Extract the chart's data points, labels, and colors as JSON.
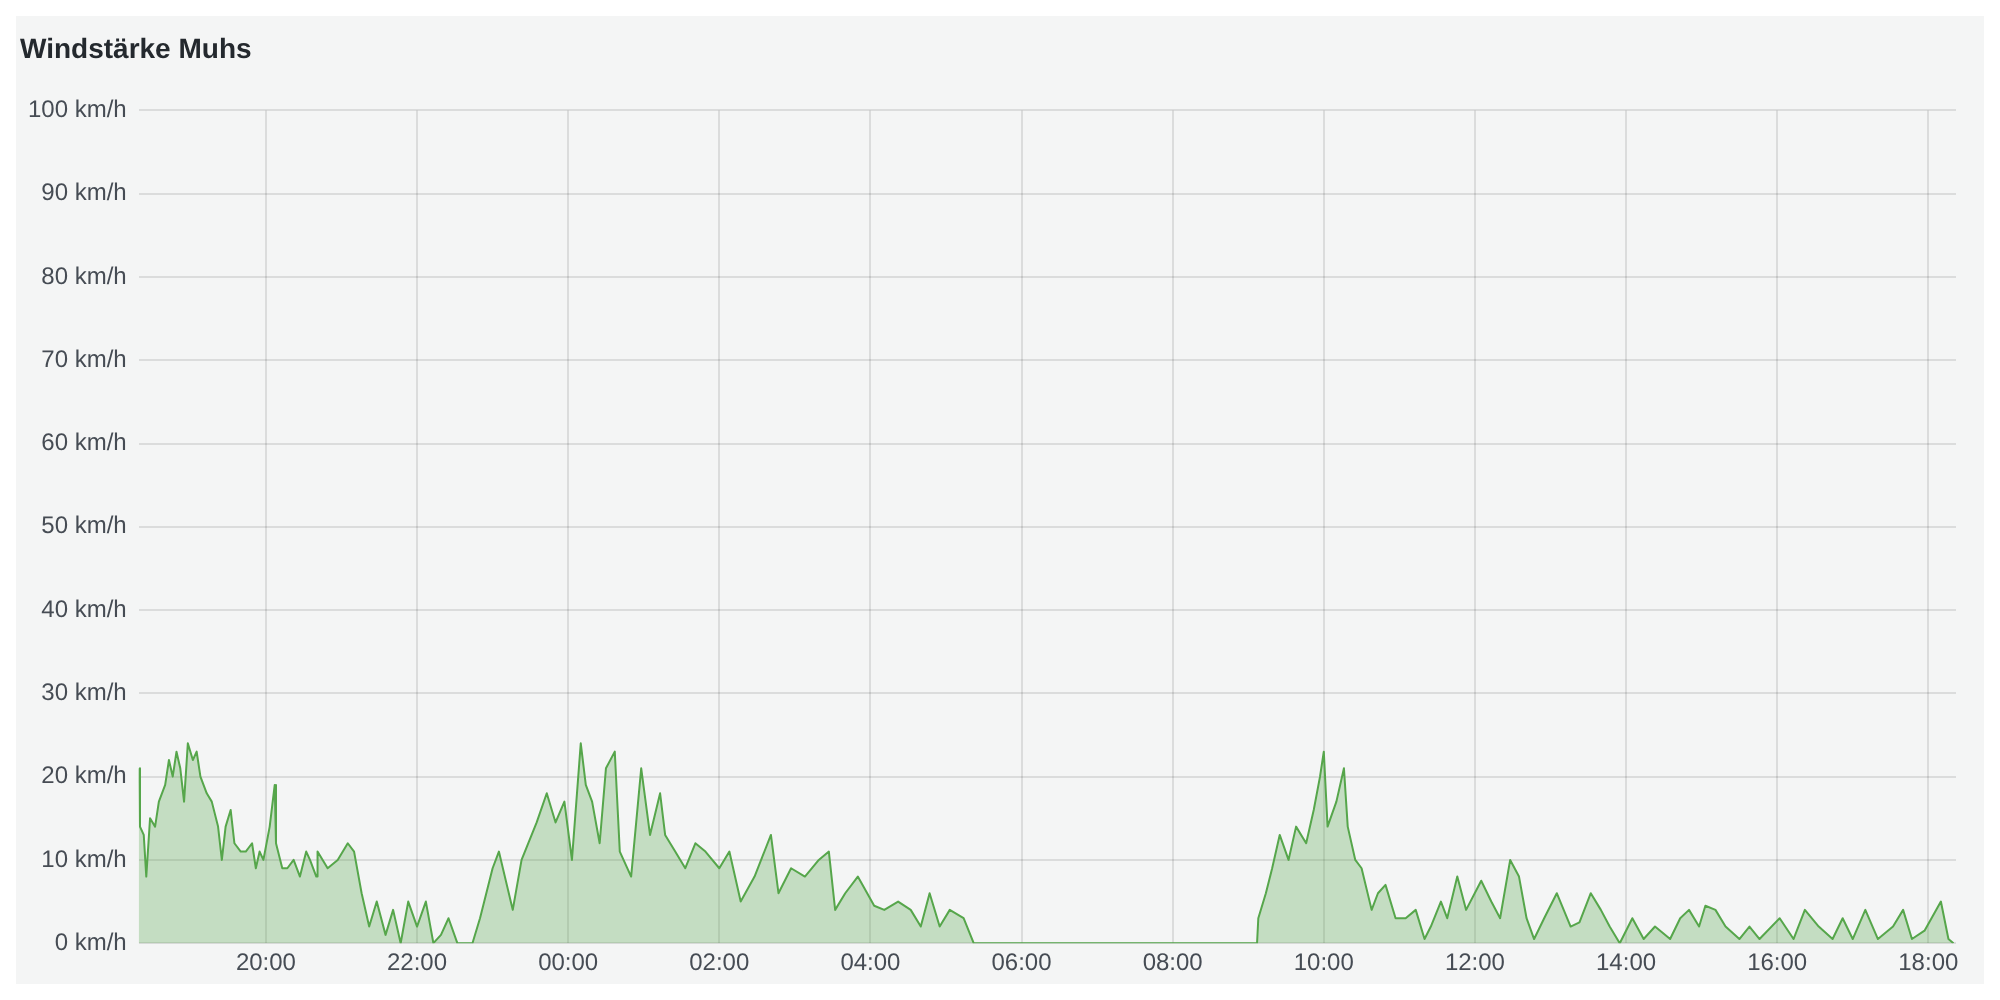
{
  "chart_data": {
    "type": "area",
    "title": "Windstärke Muhs",
    "xlim": [
      "--01-01T18:19",
      "--01-02T18:22"
    ],
    "xticks": [
      {
        "value": "--01-01T20:00",
        "label": "20:00"
      },
      {
        "value": "--01-01T22:00",
        "label": "22:00"
      },
      {
        "value": "--01-02T00:00",
        "label": "00:00"
      },
      {
        "value": "--01-02T02:00",
        "label": "02:00"
      },
      {
        "value": "--01-02T04:00",
        "label": "04:00"
      },
      {
        "value": "--01-02T06:00",
        "label": "06:00"
      },
      {
        "value": "--01-02T08:00",
        "label": "08:00"
      },
      {
        "value": "--01-02T10:00",
        "label": "10:00"
      },
      {
        "value": "--01-02T12:00",
        "label": "12:00"
      },
      {
        "value": "--01-02T14:00",
        "label": "14:00"
      },
      {
        "value": "--01-02T16:00",
        "label": "16:00"
      },
      {
        "value": "--01-02T18:00",
        "label": "18:00"
      }
    ],
    "ylim": [
      0,
      100
    ],
    "yticks": [
      {
        "value": 0,
        "label": "0 km/h"
      },
      {
        "value": 10,
        "label": "10 km/h"
      },
      {
        "value": 20,
        "label": "20 km/h"
      },
      {
        "value": 30,
        "label": "30 km/h"
      },
      {
        "value": 40,
        "label": "40 km/h"
      },
      {
        "value": 50,
        "label": "50 km/h"
      },
      {
        "value": 60,
        "label": "60 km/h"
      },
      {
        "value": 70,
        "label": "70 km/h"
      },
      {
        "value": 80,
        "label": "80 km/h"
      },
      {
        "value": 90,
        "label": "90 km/h"
      },
      {
        "value": 100,
        "label": "100 km/h"
      }
    ],
    "grid": true,
    "legend": false,
    "series": [
      {
        "color": "#56a64b",
        "x": [
          "--01-01T18:19",
          "--01-01T18:20",
          "--01-01T18:23",
          "--01-01T18:25",
          "--01-01T18:28",
          "--01-01T18:32",
          "--01-01T18:35",
          "--01-01T18:40",
          "--01-01T18:43",
          "--01-01T18:46",
          "--01-01T18:49",
          "--01-01T18:52",
          "--01-01T18:55",
          "--01-01T18:58",
          "--01-01T19:02",
          "--01-01T19:05",
          "--01-01T19:08",
          "--01-01T19:13",
          "--01-01T19:17",
          "--01-01T19:22",
          "--01-01T19:25",
          "--01-01T19:28",
          "--01-01T19:32",
          "--01-01T19:35",
          "--01-01T19:40",
          "--01-01T19:44",
          "--01-01T19:49",
          "--01-01T19:52",
          "--01-01T19:55",
          "--01-01T19:58",
          "--01-01T20:03",
          "--01-01T20:07",
          "--01-01T20:08",
          "--01-01T20:13",
          "--01-01T20:17",
          "--01-01T20:22",
          "--01-01T20:27",
          "--01-01T20:32",
          "--01-01T20:35",
          "--01-01T20:40",
          "--01-01T20:41",
          "--01-01T20:49",
          "--01-01T20:57",
          "--01-01T21:05",
          "--01-01T21:10",
          "--01-01T21:16",
          "--01-01T21:22",
          "--01-01T21:28",
          "--01-01T21:35",
          "--01-01T21:41",
          "--01-01T21:47",
          "--01-01T21:53",
          "--01-01T22:00",
          "--01-01T22:07",
          "--01-01T22:13",
          "--01-01T22:19",
          "--01-01T22:25",
          "--01-01T22:32",
          "--01-01T22:38",
          "--01-01T22:44",
          "--01-01T22:50",
          "--01-01T23:00",
          "--01-01T23:05",
          "--01-01T23:16",
          "--01-01T23:23",
          "--01-01T23:35",
          "--01-01T23:43",
          "--01-01T23:50",
          "--01-01T23:57",
          "--01-02T00:03",
          "--01-02T00:10",
          "--01-02T00:14",
          "--01-02T00:19",
          "--01-02T00:25",
          "--01-02T00:30",
          "--01-02T00:37",
          "--01-02T00:41",
          "--01-02T00:50",
          "--01-02T00:58",
          "--01-02T01:05",
          "--01-02T01:13",
          "--01-02T01:17",
          "--01-02T01:25",
          "--01-02T01:33",
          "--01-02T01:41",
          "--01-02T01:49",
          "--01-02T02:00",
          "--01-02T02:08",
          "--01-02T02:17",
          "--01-02T02:28",
          "--01-02T02:41",
          "--01-02T02:47",
          "--01-02T02:57",
          "--01-02T03:08",
          "--01-02T03:19",
          "--01-02T03:27",
          "--01-02T03:32",
          "--01-02T03:40",
          "--01-02T03:50",
          "--01-02T04:03",
          "--01-02T04:11",
          "--01-02T04:22",
          "--01-02T04:32",
          "--01-02T04:40",
          "--01-02T04:47",
          "--01-02T04:55",
          "--01-02T05:03",
          "--01-02T05:14",
          "--01-02T05:22",
          "--01-02T09:07",
          "--01-02T09:08",
          "--01-02T09:14",
          "--01-02T09:19",
          "--01-02T09:25",
          "--01-02T09:32",
          "--01-02T09:38",
          "--01-02T09:46",
          "--01-02T09:52",
          "--01-02T09:57",
          "--01-02T10:00",
          "--01-02T10:03",
          "--01-02T10:10",
          "--01-02T10:16",
          "--01-02T10:19",
          "--01-02T10:25",
          "--01-02T10:30",
          "--01-02T10:38",
          "--01-02T10:43",
          "--01-02T10:49",
          "--01-02T10:57",
          "--01-02T11:05",
          "--01-02T11:13",
          "--01-02T11:20",
          "--01-02T11:25",
          "--01-02T11:33",
          "--01-02T11:38",
          "--01-02T11:46",
          "--01-02T11:53",
          "--01-02T12:05",
          "--01-02T12:13",
          "--01-02T12:20",
          "--01-02T12:28",
          "--01-02T12:35",
          "--01-02T12:41",
          "--01-02T12:47",
          "--01-02T12:55",
          "--01-02T13:05",
          "--01-02T13:16",
          "--01-02T13:23",
          "--01-02T13:32",
          "--01-02T13:40",
          "--01-02T13:47",
          "--01-02T13:55",
          "--01-02T14:05",
          "--01-02T14:14",
          "--01-02T14:23",
          "--01-02T14:35",
          "--01-02T14:43",
          "--01-02T14:50",
          "--01-02T14:58",
          "--01-02T15:03",
          "--01-02T15:11",
          "--01-02T15:19",
          "--01-02T15:30",
          "--01-02T15:38",
          "--01-02T15:46",
          "--01-02T16:02",
          "--01-02T16:13",
          "--01-02T16:22",
          "--01-02T16:33",
          "--01-02T16:44",
          "--01-02T16:52",
          "--01-02T17:00",
          "--01-02T17:10",
          "--01-02T17:20",
          "--01-02T17:32",
          "--01-02T17:40",
          "--01-02T17:47",
          "--01-02T17:57",
          "--01-02T18:10",
          "--01-02T18:16",
          "--01-02T18:20"
        ],
        "values": [
          21,
          14,
          13,
          8,
          15,
          14,
          17,
          19,
          22,
          20,
          23,
          21,
          17,
          24,
          22,
          23,
          20,
          18,
          17,
          14,
          10,
          14,
          16,
          12,
          11,
          11,
          12,
          9,
          11,
          10,
          14,
          19,
          12,
          9,
          9,
          10,
          8,
          11,
          10,
          8,
          11,
          9,
          10,
          12,
          11,
          6,
          2,
          5,
          1,
          4,
          0,
          5,
          2,
          5,
          0,
          1,
          3,
          0,
          0,
          0,
          3,
          9,
          11,
          4,
          10,
          14.5,
          18,
          14.5,
          17,
          10,
          24,
          19,
          17,
          12,
          21,
          23,
          11,
          8,
          21,
          13,
          18,
          13,
          11,
          9,
          12,
          11,
          9,
          11,
          5,
          8,
          13,
          6,
          9,
          8,
          10,
          11,
          4,
          6,
          8,
          4.5,
          4,
          5,
          4,
          2,
          6,
          2,
          4,
          3,
          0,
          0,
          3,
          6,
          9,
          13,
          10,
          14,
          12,
          16,
          20,
          23,
          14,
          17,
          21,
          14,
          10,
          9,
          4,
          6,
          7,
          3,
          3,
          4,
          0.5,
          2,
          5,
          3,
          8,
          4,
          7.5,
          5,
          3,
          10,
          8,
          3,
          0.5,
          3,
          6,
          2,
          2.5,
          6,
          4,
          2,
          0,
          3,
          0.5,
          2,
          0.5,
          3,
          4,
          2,
          4.5,
          4,
          2,
          0.5,
          2,
          0.5,
          3,
          0.5,
          4,
          2,
          0.5,
          3,
          0.5,
          4,
          0.5,
          2,
          4,
          0.5,
          1.5,
          5,
          0.5,
          0
        ]
      }
    ]
  }
}
